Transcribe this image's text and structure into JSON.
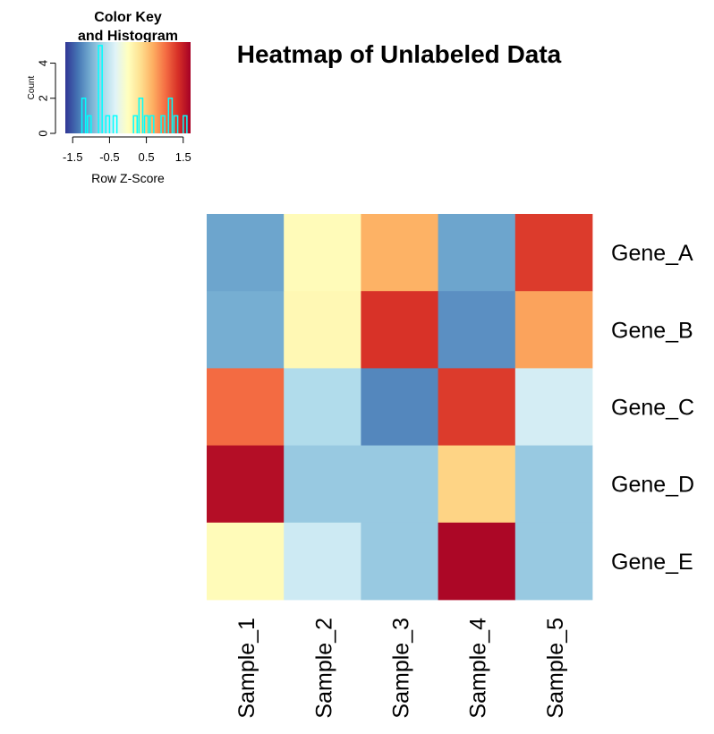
{
  "chart_data": {
    "type": "heatmap",
    "title": "Heatmap of Unlabeled Data",
    "rows": [
      "Gene_A",
      "Gene_B",
      "Gene_C",
      "Gene_D",
      "Gene_E"
    ],
    "columns": [
      "Sample_1",
      "Sample_2",
      "Sample_3",
      "Sample_4",
      "Sample_5"
    ],
    "z_scores": [
      [
        -1.07,
        0.04,
        0.65,
        -1.07,
        1.3
      ],
      [
        -1.01,
        0.08,
        1.35,
        -1.2,
        0.74
      ],
      [
        1.03,
        -0.64,
        -1.25,
        1.3,
        -0.42
      ],
      [
        1.6,
        -0.8,
        -0.8,
        0.42,
        -0.8
      ],
      [
        0.04,
        -0.46,
        -0.8,
        1.65,
        -0.8
      ]
    ],
    "color_key": {
      "title": "Color Key\nand Histogram",
      "xlabel": "Row Z-Score",
      "ylabel": "Count",
      "x_ticks": [
        "-1.5",
        "-0.5",
        "0.5",
        "1.5"
      ],
      "x_tick_values": [
        -1.5,
        -0.5,
        0.5,
        1.5
      ],
      "y_ticks": [
        "0",
        "2",
        "4"
      ],
      "y_tick_values": [
        0,
        2,
        4
      ],
      "xlim": [
        -1.7,
        1.7
      ],
      "ylim": [
        0,
        5.2
      ],
      "color_stops": [
        "#313695",
        "#4575b4",
        "#74add1",
        "#abd9e9",
        "#e0f3f8",
        "#ffffbf",
        "#fee090",
        "#fdae61",
        "#f46d43",
        "#d73027",
        "#a50026"
      ],
      "histogram_color": "#00ffff",
      "histogram_bins": [
        {
          "x": -1.2,
          "count": 2
        },
        {
          "x": -1.05,
          "count": 1
        },
        {
          "x": -0.75,
          "count": 5
        },
        {
          "x": -0.55,
          "count": 1
        },
        {
          "x": -0.35,
          "count": 1
        },
        {
          "x": 0.2,
          "count": 1
        },
        {
          "x": 0.35,
          "count": 2
        },
        {
          "x": 0.5,
          "count": 1
        },
        {
          "x": 0.65,
          "count": 1
        },
        {
          "x": 0.95,
          "count": 1
        },
        {
          "x": 1.15,
          "count": 2
        },
        {
          "x": 1.3,
          "count": 1
        },
        {
          "x": 1.55,
          "count": 1
        }
      ]
    }
  }
}
